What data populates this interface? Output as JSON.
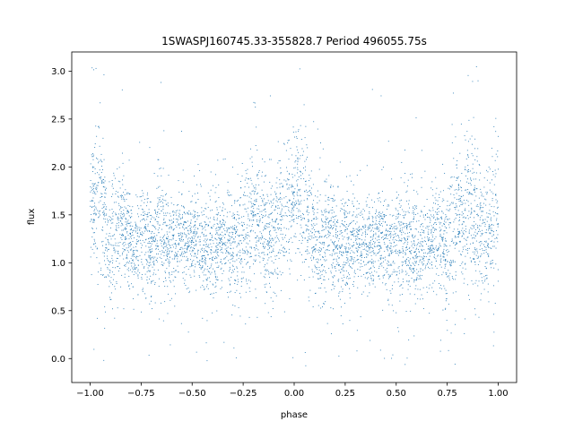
{
  "chart_data": {
    "type": "scatter",
    "title": "1SWASPJ160745.33-355828.7 Period 496055.75s",
    "xlabel": "phase",
    "ylabel": "flux",
    "xlim": [
      -1.09,
      1.09
    ],
    "ylim": [
      -0.25,
      3.2
    ],
    "xticks": [
      -1.0,
      -0.75,
      -0.5,
      -0.25,
      0.0,
      0.25,
      0.5,
      0.75,
      1.0
    ],
    "xtick_labels": [
      "−1.00",
      "−0.75",
      "−0.50",
      "−0.25",
      "0.00",
      "0.25",
      "0.50",
      "0.75",
      "1.00"
    ],
    "yticks": [
      0.0,
      0.5,
      1.0,
      1.5,
      2.0,
      2.5,
      3.0
    ],
    "ytick_labels": [
      "0.0",
      "0.5",
      "1.0",
      "1.5",
      "2.0",
      "2.5",
      "3.0"
    ],
    "grid": false,
    "legend": "none",
    "marker_color": "#1f77b4",
    "series": [
      {
        "x": [
          -0.98,
          -0.96,
          -0.94,
          -0.92,
          -0.9,
          -0.88,
          -0.86,
          -0.84,
          -0.82,
          -0.8,
          -0.78,
          -0.75,
          -0.72,
          -0.7,
          -0.68,
          -0.65,
          -0.62,
          -0.6,
          -0.58,
          -0.55,
          -0.52,
          -0.5,
          -0.48,
          -0.45,
          -0.42,
          -0.4,
          -0.38,
          -0.35,
          -0.32,
          -0.3,
          -0.28,
          -0.25,
          -0.22,
          -0.2,
          -0.18,
          -0.15,
          -0.12,
          -0.1,
          -0.08,
          -0.05,
          -0.02,
          0.0,
          0.02,
          0.05,
          0.08,
          0.1,
          0.12,
          0.15,
          0.18,
          0.2,
          0.22,
          0.25,
          0.28,
          0.3,
          0.32,
          0.35,
          0.38,
          0.4,
          0.42,
          0.45,
          0.48,
          0.5,
          0.52,
          0.55,
          0.58,
          0.6,
          0.62,
          0.65,
          0.68,
          0.7,
          0.72,
          0.75,
          0.78,
          0.8,
          0.82,
          0.85,
          0.88,
          0.9,
          0.92,
          0.95,
          0.98
        ],
        "y": [
          1.7,
          1.8,
          1.6,
          1.2,
          1.1,
          1.3,
          1.45,
          1.5,
          1.35,
          1.2,
          1.1,
          1.25,
          1.2,
          1.15,
          1.3,
          1.35,
          1.2,
          1.1,
          1.25,
          1.3,
          1.2,
          1.25,
          1.3,
          1.2,
          1.1,
          1.15,
          1.2,
          1.3,
          1.15,
          1.1,
          1.2,
          1.3,
          1.4,
          1.55,
          1.45,
          1.3,
          1.2,
          1.3,
          1.4,
          1.5,
          1.6,
          1.7,
          1.75,
          1.6,
          1.4,
          1.3,
          1.2,
          1.25,
          1.35,
          1.2,
          1.1,
          1.2,
          1.15,
          1.25,
          1.2,
          1.15,
          1.2,
          1.3,
          1.25,
          1.2,
          1.15,
          1.2,
          1.3,
          1.25,
          1.2,
          1.1,
          1.15,
          1.2,
          1.25,
          1.3,
          1.2,
          1.15,
          1.35,
          1.5,
          1.45,
          1.6,
          1.55,
          1.4,
          1.3,
          1.25,
          1.5
        ],
        "spread": [
          0.35,
          0.4,
          0.4,
          0.3,
          0.25,
          0.3,
          0.3,
          0.3,
          0.25,
          0.25,
          0.25,
          0.25,
          0.25,
          0.25,
          0.25,
          0.3,
          0.25,
          0.25,
          0.25,
          0.25,
          0.2,
          0.2,
          0.25,
          0.25,
          0.25,
          0.25,
          0.25,
          0.25,
          0.25,
          0.25,
          0.3,
          0.35,
          0.35,
          0.35,
          0.35,
          0.3,
          0.3,
          0.3,
          0.3,
          0.35,
          0.35,
          0.35,
          0.35,
          0.35,
          0.3,
          0.3,
          0.3,
          0.3,
          0.3,
          0.25,
          0.25,
          0.25,
          0.25,
          0.25,
          0.25,
          0.25,
          0.25,
          0.25,
          0.25,
          0.25,
          0.25,
          0.25,
          0.3,
          0.3,
          0.25,
          0.25,
          0.25,
          0.25,
          0.25,
          0.3,
          0.3,
          0.3,
          0.35,
          0.35,
          0.35,
          0.4,
          0.4,
          0.35,
          0.3,
          0.3,
          0.35
        ]
      }
    ]
  }
}
